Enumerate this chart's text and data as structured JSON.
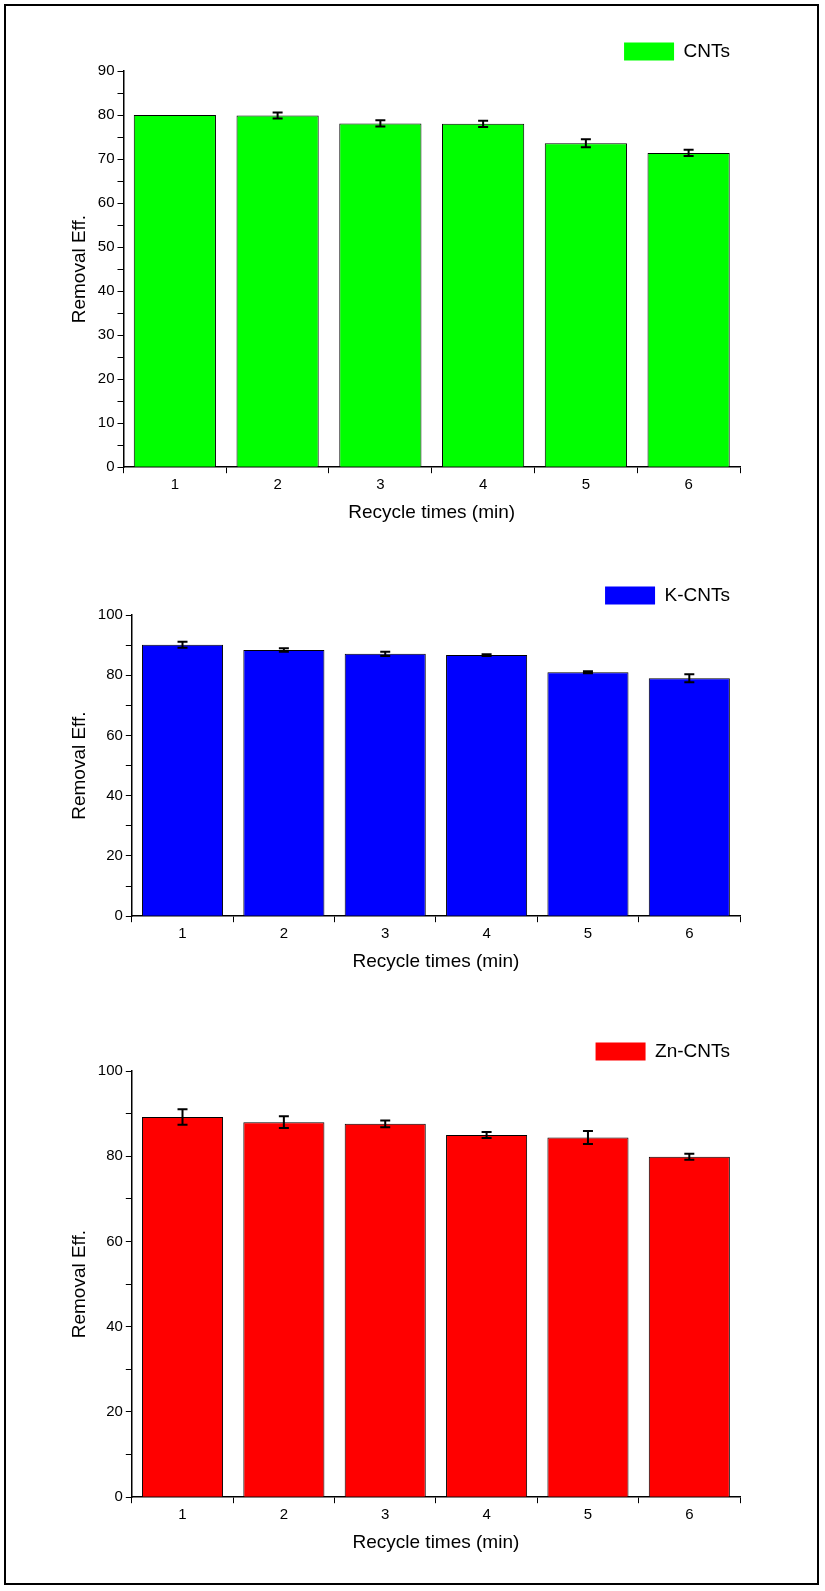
{
  "chart_data": [
    {
      "type": "bar",
      "xlabel": "Recycle times (min)",
      "ylabel": "Removal Eff.",
      "categories": [
        "1",
        "2",
        "3",
        "4",
        "5",
        "6"
      ],
      "series": [
        {
          "name": "CNTs",
          "color": "#00ff00",
          "values": [
            80,
            79.9,
            78.1,
            78,
            73.6,
            71.4
          ],
          "errors": [
            null,
            0.7,
            0.7,
            0.7,
            0.9,
            0.7
          ]
        }
      ],
      "ylim": [
        0,
        90
      ],
      "yticks": [
        0,
        {
          "value": 5,
          "label": null
        },
        10,
        {
          "value": 15,
          "label": null
        },
        20,
        {
          "value": 25,
          "label": null
        },
        30,
        {
          "value": 35,
          "label": null
        },
        40,
        {
          "value": 45,
          "label": null
        },
        50,
        {
          "value": 55,
          "label": null
        },
        60,
        {
          "value": 65,
          "label": null
        },
        70,
        {
          "value": 75,
          "label": null
        },
        80,
        {
          "value": 85,
          "label": null
        },
        90
      ],
      "grid": false,
      "legend": "top right"
    },
    {
      "type": "bar",
      "xlabel": "Recycle times (min)",
      "ylabel": "Removal Eff.",
      "categories": [
        "1",
        "2",
        "3",
        "4",
        "5",
        "6"
      ],
      "series": [
        {
          "name": "K-CNTs",
          "color": "#0000ff",
          "values": [
            90.1,
            88.4,
            87.1,
            86.7,
            81,
            79
          ],
          "errors": [
            1,
            0.6,
            0.7,
            0.3,
            0.3,
            1.3
          ]
        }
      ],
      "ylim": [
        0,
        100
      ],
      "yticks": [
        0,
        {
          "value": 10,
          "label": null
        },
        20,
        {
          "value": 30,
          "label": null
        },
        40,
        {
          "value": 50,
          "label": null
        },
        60,
        {
          "value": 70,
          "label": null
        },
        80,
        {
          "value": 90,
          "label": null
        },
        100
      ],
      "grid": false,
      "legend": "top right"
    },
    {
      "type": "bar",
      "xlabel": "Recycle times (min)",
      "ylabel": "Removal Eff.",
      "categories": [
        "1",
        "2",
        "3",
        "4",
        "5",
        "6"
      ],
      "series": [
        {
          "name": "Zn-CNTs",
          "color": "#ff0000",
          "values": [
            89.2,
            88,
            87.6,
            85,
            84.4,
            79.9
          ],
          "errors": [
            1.8,
            1.4,
            0.8,
            0.7,
            1.5,
            0.7
          ]
        }
      ],
      "ylim": [
        0,
        100
      ],
      "yticks": [
        0,
        {
          "value": 10,
          "label": null
        },
        20,
        {
          "value": 30,
          "label": null
        },
        40,
        {
          "value": 50,
          "label": null
        },
        60,
        {
          "value": 70,
          "label": null
        },
        80,
        {
          "value": 90,
          "label": null
        },
        100
      ],
      "grid": false,
      "legend": "top right"
    }
  ]
}
